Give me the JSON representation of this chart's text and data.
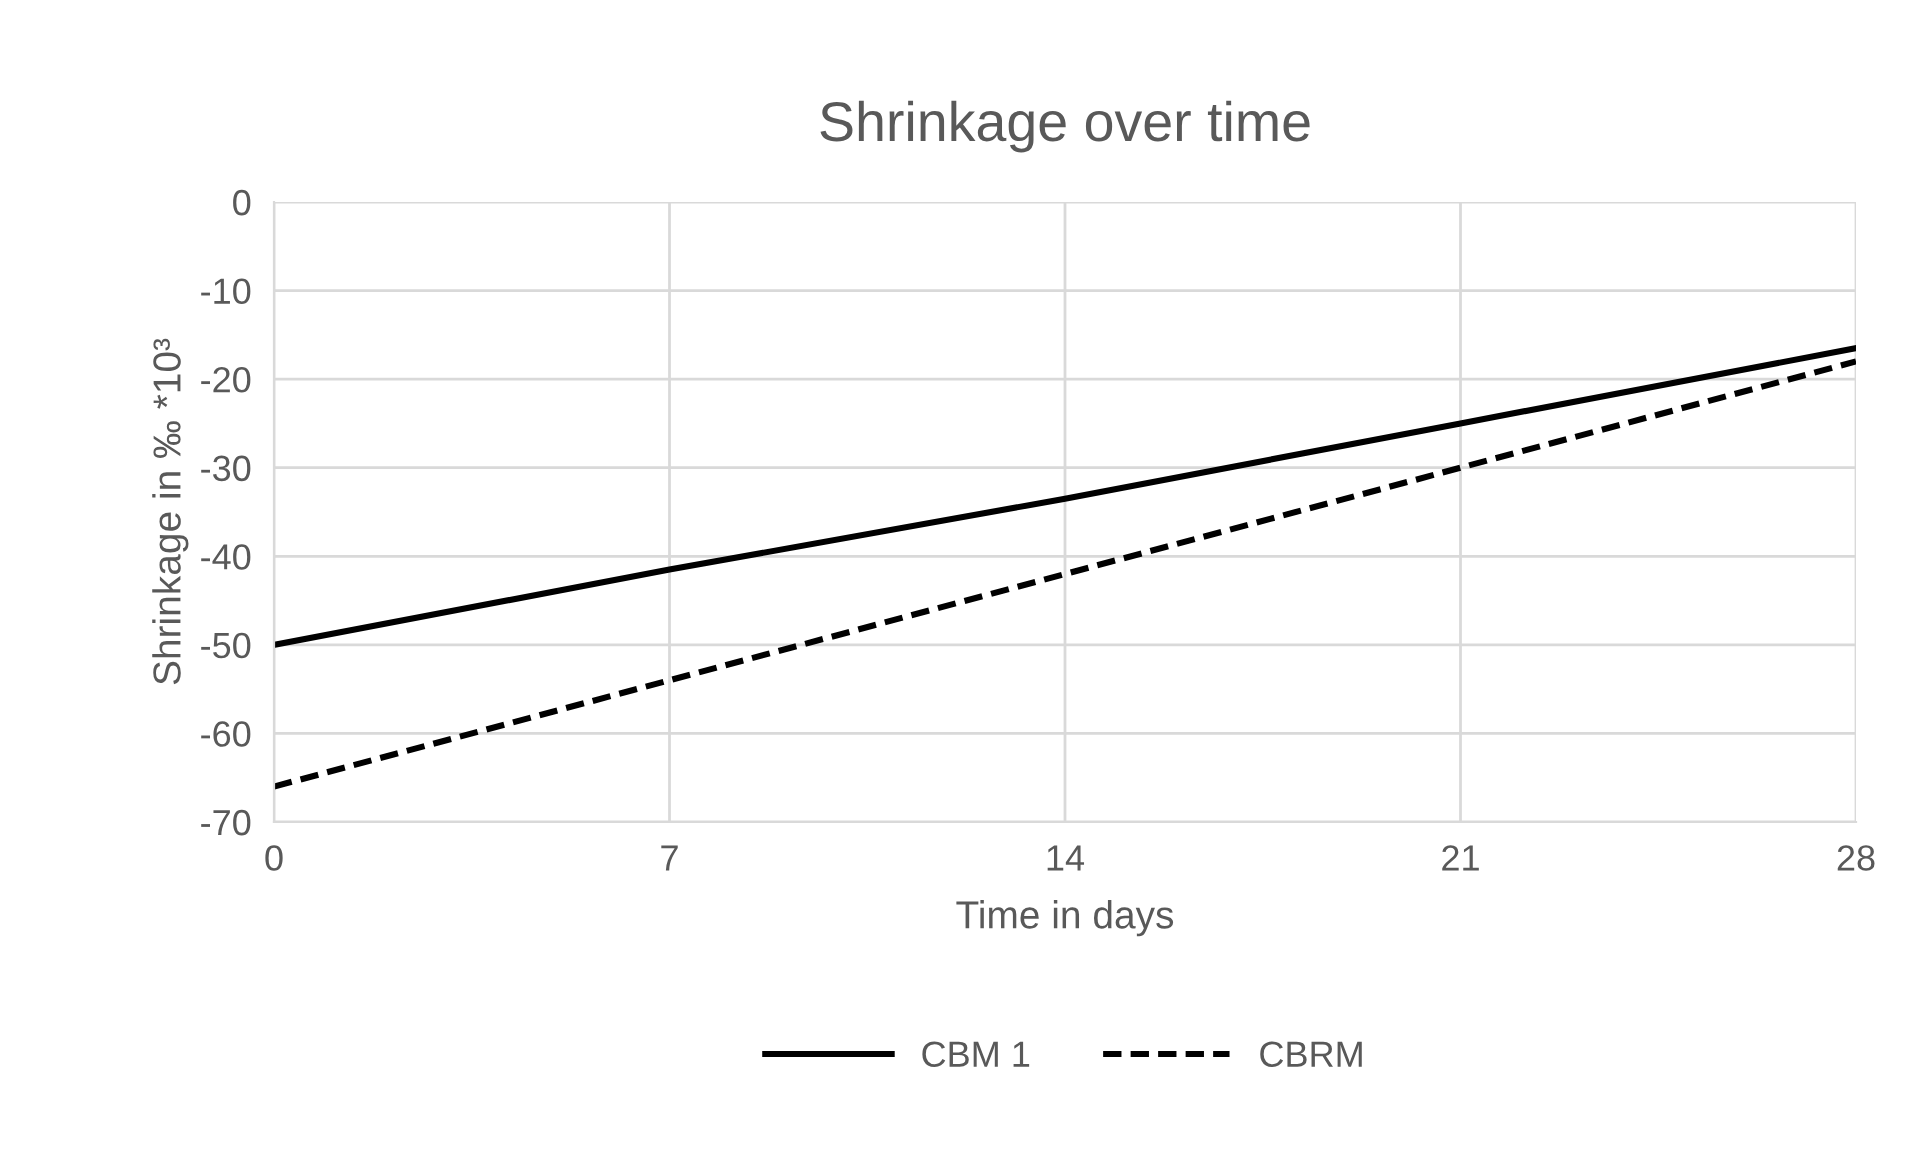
{
  "chart_data": {
    "type": "line",
    "title": "Shrinkage over time",
    "xlabel": "Time in days",
    "ylabel": "Shrinkage in ‰ *10³",
    "series": [
      {
        "name": "CBM 1",
        "color": "#000000",
        "x": [
          0,
          7,
          14,
          21,
          28
        ],
        "values": [
          -50,
          -41.5,
          -33.5,
          -25,
          -16.5
        ],
        "line_style": "solid"
      },
      {
        "name": "CBRM",
        "color": "#000000",
        "x": [
          0,
          7,
          14,
          21,
          28
        ],
        "values": [
          -66,
          -54,
          -42,
          -30,
          -18
        ],
        "line_style": "dashed"
      }
    ],
    "xlim": [
      0,
      28
    ],
    "xticks": [
      0,
      7,
      14,
      21,
      28
    ],
    "ylim": [
      -70,
      0
    ],
    "yticks": [
      -70,
      -60,
      -50,
      -40,
      -30,
      -20,
      -10,
      0
    ],
    "grid": true,
    "legend": "bottom",
    "marker": "none"
  }
}
